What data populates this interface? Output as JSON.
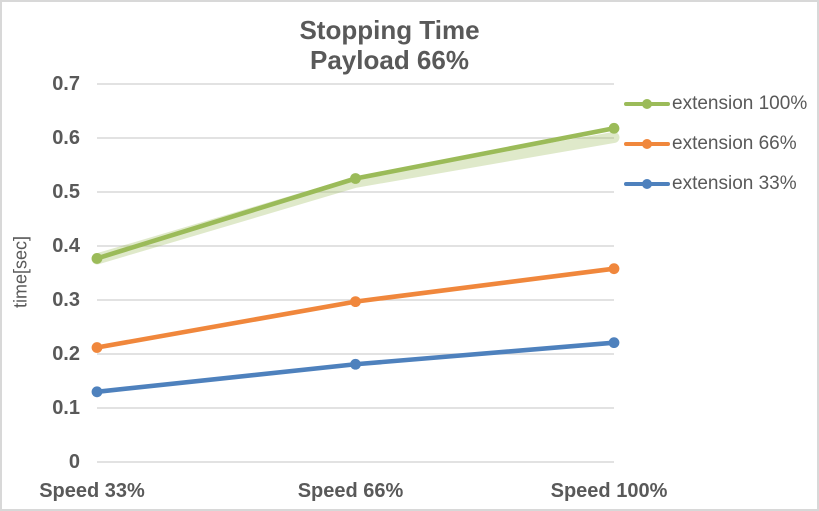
{
  "chart_data": {
    "type": "line",
    "title": "Stopping Time",
    "subtitle": "Payload 66%",
    "ylabel": "time[sec]",
    "categories": [
      "Speed 33%",
      "Speed 66%",
      "Speed 100%"
    ],
    "series": [
      {
        "name": "extension 100%",
        "color": "#9BBB59",
        "values": [
          0.377,
          0.525,
          0.618
        ]
      },
      {
        "name": "extension 66%",
        "color": "#F0873C",
        "values": [
          0.212,
          0.297,
          0.358
        ]
      },
      {
        "name": "extension 33%",
        "color": "#4E81BD",
        "values": [
          0.13,
          0.181,
          0.221
        ]
      }
    ],
    "shadow_series": {
      "name": "extension 100% shadow",
      "color": "#9BBB59",
      "opacity": 0.32,
      "values": [
        0.376,
        0.518,
        0.601
      ]
    },
    "ylim": [
      0,
      0.7
    ],
    "ytick_step": 0.1,
    "yticks": [
      "0.7",
      "0.6",
      "0.5",
      "0.4",
      "0.3",
      "0.2",
      "0.1",
      "0"
    ],
    "grid": true,
    "legend_position": "right",
    "marker": "circle"
  },
  "colors": {
    "text": "#595959",
    "grid": "#D9D9D9",
    "border": "#D8D8D8",
    "background": "#FFFFFF"
  }
}
